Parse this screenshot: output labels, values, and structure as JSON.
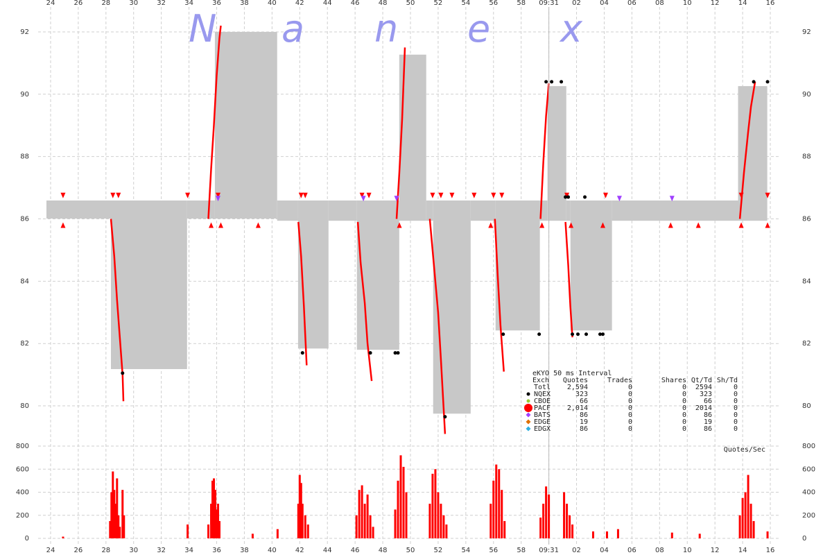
{
  "chart_data": [
    {
      "type": "line",
      "watermark": [
        "N",
        "a",
        "n",
        "e",
        "x"
      ],
      "xlim": [
        23.1,
        76.7
      ],
      "xticks": [
        24,
        26,
        28,
        30,
        32,
        34,
        36,
        38,
        40,
        42,
        44,
        46,
        48,
        50,
        52,
        54,
        56,
        58,
        {
          "value": 60,
          "label": "09:31"
        },
        {
          "value": 62,
          "label": "02"
        },
        {
          "value": 64,
          "label": "04"
        },
        {
          "value": 66,
          "label": "06"
        },
        {
          "value": 68,
          "label": "08"
        },
        {
          "value": 70,
          "label": "10"
        },
        {
          "value": 72,
          "label": "12"
        },
        {
          "value": 74,
          "label": "14"
        },
        {
          "value": 76,
          "label": "16"
        }
      ],
      "ylim": [
        79.4,
        92.6
      ],
      "yticks": [
        80,
        82,
        84,
        86,
        88,
        90,
        92
      ],
      "grid": true,
      "vline_x": 60,
      "spread": {
        "color": "#c8c8c8",
        "x0": [
          23.7,
          28.36,
          33.86,
          35.87,
          40.37,
          41.88,
          44.08,
          46.13,
          49.19,
          51.14,
          51.64,
          54.35,
          56.15,
          59.35,
          59.9,
          61.26,
          61.56,
          64.56,
          73.67
        ],
        "x1": [
          28.36,
          33.86,
          35.87,
          40.37,
          41.88,
          44.08,
          46.13,
          49.19,
          51.14,
          51.64,
          54.35,
          56.15,
          59.35,
          59.9,
          61.26,
          61.56,
          64.56,
          73.67,
          75.78
        ],
        "low": [
          86.01,
          81.18,
          86.01,
          86.01,
          85.94,
          81.84,
          85.94,
          81.8,
          85.94,
          85.94,
          79.75,
          85.94,
          82.42,
          85.94,
          85.94,
          85.94,
          82.42,
          85.94,
          85.94
        ],
        "high": [
          86.59,
          86.59,
          86.59,
          92.0,
          86.59,
          86.59,
          86.59,
          86.59,
          91.27,
          86.59,
          86.59,
          86.59,
          86.59,
          86.59,
          90.26,
          86.59,
          86.59,
          86.59,
          90.26
        ]
      },
      "x": [
        28.36,
        28.6,
        28.8,
        29.0,
        29.2,
        29.26,
        null,
        35.4,
        35.6,
        35.8,
        36.0,
        36.2,
        36.3,
        null,
        41.9,
        42.1,
        42.3,
        42.5,
        null,
        46.2,
        46.4,
        46.7,
        46.9,
        47.2,
        null,
        49.0,
        49.2,
        49.4,
        49.6,
        null,
        51.4,
        51.7,
        52.0,
        52.2,
        52.5,
        null,
        56.1,
        56.3,
        56.5,
        56.75,
        null,
        59.4,
        59.6,
        59.8,
        60.0,
        null,
        61.2,
        61.4,
        61.55,
        61.7,
        null,
        73.8,
        74.1,
        74.4,
        74.6,
        74.9
      ],
      "series": [
        {
          "color": "#ff0000",
          "values": [
            86.0,
            84.8,
            83.4,
            82.2,
            81.0,
            80.15,
            null,
            86.0,
            87.6,
            89.0,
            90.6,
            91.8,
            92.2,
            null,
            85.9,
            84.8,
            83.2,
            81.3,
            null,
            85.9,
            84.6,
            83.3,
            82.0,
            80.8,
            null,
            86.0,
            87.5,
            89.2,
            91.5,
            null,
            86.0,
            84.5,
            83.0,
            81.5,
            79.1,
            null,
            86.0,
            84.2,
            82.6,
            81.1,
            null,
            86.0,
            87.8,
            89.3,
            90.35,
            null,
            85.9,
            84.5,
            83.2,
            82.2,
            null,
            86.0,
            87.5,
            88.8,
            89.6,
            90.4
          ]
        }
      ],
      "markers": {
        "x": [
          24.9,
          28.5,
          28.9,
          33.9,
          36.1,
          42.1,
          42.4,
          46.5,
          47.0,
          51.6,
          52.2,
          53.0,
          54.6,
          56.0,
          56.6,
          61.3,
          64.1,
          73.9,
          75.8,
          24.9,
          35.6,
          36.3,
          39.0,
          49.2,
          55.8,
          59.5,
          61.6,
          63.9,
          68.8,
          70.8,
          73.9,
          75.8,
          36.1,
          46.6,
          49.0,
          65.1,
          68.9,
          59.8,
          60.2,
          60.9,
          74.8,
          75.8,
          56.7,
          59.3,
          61.7,
          62.1,
          62.7,
          63.7,
          63.9,
          29.2,
          42.2,
          47.1,
          48.9,
          49.1,
          52.5,
          61.2,
          61.4,
          62.6
        ],
        "y": [
          86.75,
          86.75,
          86.75,
          86.75,
          86.75,
          86.75,
          86.75,
          86.75,
          86.75,
          86.75,
          86.75,
          86.75,
          86.75,
          86.75,
          86.75,
          86.75,
          86.75,
          86.75,
          86.75,
          85.8,
          85.8,
          85.8,
          85.8,
          85.8,
          85.8,
          85.8,
          85.8,
          85.8,
          85.8,
          85.8,
          85.8,
          85.8,
          86.65,
          86.65,
          86.65,
          86.65,
          86.65,
          90.4,
          90.4,
          90.4,
          90.4,
          90.4,
          82.3,
          82.3,
          82.3,
          82.3,
          82.3,
          82.3,
          82.3,
          81.05,
          81.7,
          81.7,
          81.7,
          81.7,
          79.65,
          86.7,
          86.7,
          86.7
        ],
        "color": [
          "#ff0000",
          "#ff0000",
          "#ff0000",
          "#ff0000",
          "#ff0000",
          "#ff0000",
          "#ff0000",
          "#ff0000",
          "#ff0000",
          "#ff0000",
          "#ff0000",
          "#ff0000",
          "#ff0000",
          "#ff0000",
          "#ff0000",
          "#ff0000",
          "#ff0000",
          "#ff0000",
          "#ff0000",
          "#ff0000",
          "#ff0000",
          "#ff0000",
          "#ff0000",
          "#ff0000",
          "#ff0000",
          "#ff0000",
          "#ff0000",
          "#ff0000",
          "#ff0000",
          "#ff0000",
          "#ff0000",
          "#ff0000",
          "#a040ff",
          "#a040ff",
          "#a040ff",
          "#a040ff",
          "#a040ff",
          "#000000",
          "#000000",
          "#000000",
          "#000000",
          "#000000",
          "#000000",
          "#000000",
          "#000000",
          "#000000",
          "#000000",
          "#000000",
          "#000000",
          "#000000",
          "#000000",
          "#000000",
          "#000000",
          "#000000",
          "#000000",
          "#000000",
          "#000000",
          "#000000"
        ],
        "shape": [
          "down",
          "down",
          "down",
          "down",
          "down",
          "down",
          "down",
          "down",
          "down",
          "down",
          "down",
          "down",
          "down",
          "down",
          "down",
          "down",
          "down",
          "down",
          "down",
          "up",
          "up",
          "up",
          "up",
          "up",
          "up",
          "up",
          "up",
          "up",
          "up",
          "up",
          "up",
          "up",
          "down",
          "down",
          "down",
          "down",
          "down",
          "dot",
          "dot",
          "dot",
          "dot",
          "dot",
          "dot",
          "dot",
          "dot",
          "dot",
          "dot",
          "dot",
          "dot",
          "dot",
          "dot",
          "dot",
          "dot",
          "dot",
          "dot",
          "dot",
          "dot",
          "dot"
        ]
      },
      "legend_table": {
        "title": "eKYO 50 ms Interval",
        "columns": [
          "Exch",
          "Quotes",
          "Trades",
          "Shares",
          "Qt/Td",
          "Sh/Td"
        ],
        "rows": [
          [
            "Totl",
            "2,594",
            "0",
            "0",
            "2594",
            "0"
          ],
          [
            "NQEX",
            "323",
            "0",
            "0",
            "323",
            "0"
          ],
          [
            "CBOE",
            "66",
            "0",
            "0",
            "66",
            "0"
          ],
          [
            "PACF",
            "2,014",
            "0",
            "0",
            "2014",
            "0"
          ],
          [
            "BATS",
            "86",
            "0",
            "0",
            "86",
            "0"
          ],
          [
            "EDGE",
            "19",
            "0",
            "0",
            "19",
            "0"
          ],
          [
            "EDGX",
            "86",
            "0",
            "0",
            "86",
            "0"
          ]
        ],
        "row_colors": [
          null,
          "#000000",
          "#9acd32",
          "#ff0000",
          "#a040ff",
          "#e07000",
          "#30b0e0"
        ],
        "row_shapes": [
          null,
          "dot",
          "dot",
          "big-dot",
          "diamond",
          "diamond",
          "diamond"
        ]
      }
    },
    {
      "type": "bar",
      "title": "Quotes/Sec",
      "color": "#ff0000",
      "xlim": [
        23.1,
        76.7
      ],
      "ylim": [
        0,
        800
      ],
      "yticks": [
        0,
        200,
        400,
        600,
        800
      ],
      "x": [
        24.9,
        28.3,
        28.4,
        28.5,
        28.6,
        28.7,
        28.8,
        28.9,
        29.0,
        29.2,
        29.3,
        33.9,
        35.4,
        35.6,
        35.7,
        35.8,
        35.9,
        36.0,
        36.1,
        36.2,
        38.6,
        40.4,
        41.9,
        42.0,
        42.1,
        42.2,
        42.4,
        42.6,
        46.1,
        46.3,
        46.5,
        46.7,
        46.9,
        47.1,
        47.3,
        48.9,
        49.1,
        49.3,
        49.5,
        49.7,
        51.4,
        51.6,
        51.8,
        52.0,
        52.2,
        52.4,
        52.6,
        55.8,
        56.0,
        56.2,
        56.4,
        56.6,
        56.8,
        59.4,
        59.6,
        59.8,
        60.0,
        61.1,
        61.3,
        61.5,
        61.7,
        63.2,
        64.2,
        65.0,
        68.9,
        70.9,
        73.8,
        74.0,
        74.2,
        74.4,
        74.6,
        74.8,
        75.8
      ],
      "values": [
        15,
        150,
        400,
        580,
        420,
        300,
        520,
        200,
        100,
        420,
        200,
        120,
        120,
        300,
        500,
        520,
        420,
        250,
        300,
        150,
        40,
        80,
        300,
        550,
        480,
        300,
        200,
        120,
        200,
        420,
        460,
        300,
        380,
        200,
        100,
        250,
        500,
        720,
        620,
        400,
        300,
        560,
        600,
        400,
        300,
        200,
        120,
        300,
        500,
        640,
        600,
        420,
        150,
        180,
        300,
        450,
        380,
        400,
        300,
        200,
        120,
        60,
        60,
        80,
        50,
        40,
        200,
        350,
        400,
        550,
        300,
        150,
        60
      ]
    }
  ]
}
